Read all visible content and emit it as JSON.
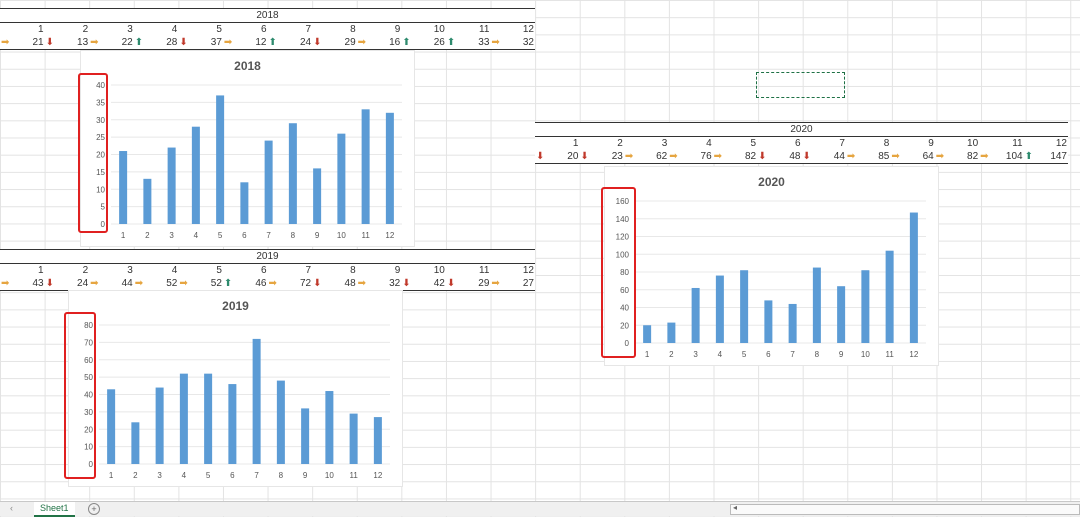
{
  "tab": {
    "sheet_name": "Sheet1",
    "add_symbol": "+",
    "nav_prev": "‹",
    "nav_scroll": "◂"
  },
  "blocks": {
    "b2018": {
      "year": "2018",
      "months": [
        "1",
        "2",
        "3",
        "4",
        "5",
        "6",
        "7",
        "8",
        "9",
        "10",
        "11",
        "12"
      ],
      "values": [
        "21",
        "13",
        "22",
        "28",
        "37",
        "12",
        "24",
        "29",
        "16",
        "26",
        "33",
        "32"
      ],
      "trends": [
        "flat",
        "down",
        "flat",
        "up",
        "down",
        "flat",
        "up",
        "down",
        "flat",
        "up",
        "up",
        "flat"
      ]
    },
    "b2019": {
      "year": "2019",
      "months": [
        "1",
        "2",
        "3",
        "4",
        "5",
        "6",
        "7",
        "8",
        "9",
        "10",
        "11",
        "12"
      ],
      "values": [
        "43",
        "24",
        "44",
        "52",
        "52",
        "46",
        "72",
        "48",
        "32",
        "42",
        "29",
        "27"
      ],
      "trends": [
        "flat",
        "down",
        "flat",
        "flat",
        "flat",
        "up",
        "flat",
        "down",
        "flat",
        "down",
        "down",
        "flat"
      ]
    },
    "b2020": {
      "year": "2020",
      "months": [
        "1",
        "2",
        "3",
        "4",
        "5",
        "6",
        "7",
        "8",
        "9",
        "10",
        "11",
        "12"
      ],
      "values": [
        "20",
        "23",
        "62",
        "76",
        "82",
        "48",
        "44",
        "85",
        "64",
        "82",
        "104",
        "147"
      ],
      "trends": [
        "down",
        "down",
        "flat",
        "flat",
        "flat",
        "down",
        "down",
        "flat",
        "flat",
        "flat",
        "flat",
        "up"
      ]
    }
  },
  "chart_data": [
    {
      "type": "bar",
      "title": "2018",
      "categories": [
        "1",
        "2",
        "3",
        "4",
        "5",
        "6",
        "7",
        "8",
        "9",
        "10",
        "11",
        "12"
      ],
      "series": [
        {
          "values": [
            21,
            13,
            22,
            28,
            37,
            12,
            24,
            29,
            16,
            26,
            33,
            32
          ]
        }
      ],
      "ylim": [
        0,
        40
      ],
      "yticks": [
        "0",
        "5",
        "10",
        "15",
        "20",
        "25",
        "30",
        "35",
        "40"
      ],
      "grid": true,
      "color": "#5b9bd5"
    },
    {
      "type": "bar",
      "title": "2019",
      "categories": [
        "1",
        "2",
        "3",
        "4",
        "5",
        "6",
        "7",
        "8",
        "9",
        "10",
        "11",
        "12"
      ],
      "series": [
        {
          "values": [
            43,
            24,
            44,
            52,
            52,
            46,
            72,
            48,
            32,
            42,
            29,
            27
          ]
        }
      ],
      "ylim": [
        0,
        80
      ],
      "yticks": [
        "0",
        "10",
        "20",
        "30",
        "40",
        "50",
        "60",
        "70",
        "80"
      ],
      "grid": true,
      "color": "#5b9bd5"
    },
    {
      "type": "bar",
      "title": "2020",
      "categories": [
        "1",
        "2",
        "3",
        "4",
        "5",
        "6",
        "7",
        "8",
        "9",
        "10",
        "11",
        "12"
      ],
      "series": [
        {
          "values": [
            20,
            23,
            62,
            76,
            82,
            48,
            44,
            85,
            64,
            82,
            104,
            147
          ]
        }
      ],
      "ylim": [
        0,
        160
      ],
      "yticks": [
        "0",
        "20",
        "40",
        "60",
        "80",
        "100",
        "120",
        "140",
        "160"
      ],
      "grid": true,
      "color": "#5b9bd5"
    }
  ],
  "icons": {
    "up": "arrow-up-icon",
    "down": "arrow-down-icon",
    "flat": "arrow-right-icon"
  }
}
